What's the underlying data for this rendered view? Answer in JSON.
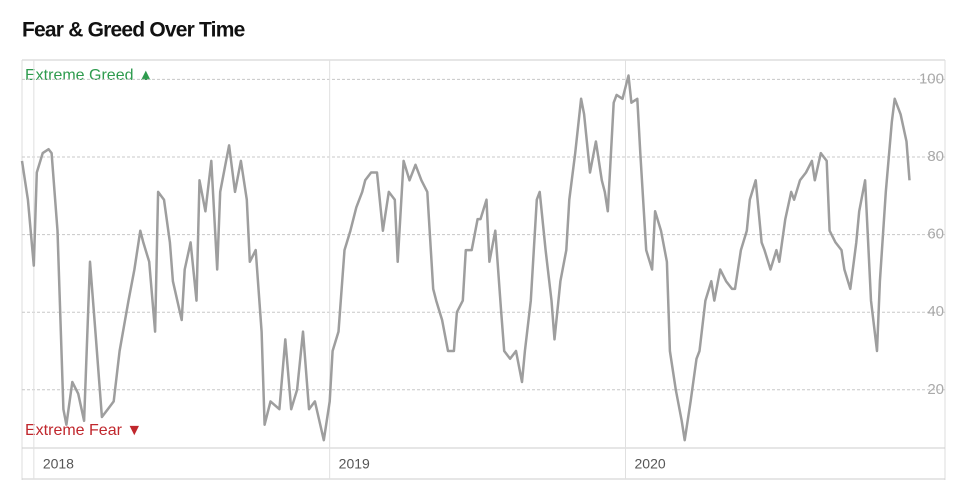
{
  "chart_data": {
    "type": "line",
    "title": "Fear & Greed Over Time",
    "annotations": {
      "top": "Extreme Greed ▲",
      "bottom": "Extreme Fear ▼"
    },
    "x": [
      2017.96,
      2017.98,
      2018.0,
      2018.01,
      2018.03,
      2018.05,
      2018.06,
      2018.08,
      2018.1,
      2018.11,
      2018.13,
      2018.15,
      2018.17,
      2018.19,
      2018.21,
      2018.23,
      2018.25,
      2018.27,
      2018.29,
      2018.32,
      2018.34,
      2018.36,
      2018.37,
      2018.39,
      2018.41,
      2018.42,
      2018.44,
      2018.46,
      2018.47,
      2018.5,
      2018.51,
      2018.53,
      2018.55,
      2018.56,
      2018.58,
      2018.6,
      2018.62,
      2018.63,
      2018.65,
      2018.66,
      2018.68,
      2018.7,
      2018.72,
      2018.73,
      2018.75,
      2018.77,
      2018.78,
      2018.8,
      2018.83,
      2018.85,
      2018.87,
      2018.89,
      2018.91,
      2018.93,
      2018.95,
      2018.98,
      2019.0,
      2019.01,
      2019.03,
      2019.05,
      2019.07,
      2019.09,
      2019.11,
      2019.12,
      2019.14,
      2019.16,
      2019.18,
      2019.2,
      2019.22,
      2019.23,
      2019.25,
      2019.27,
      2019.29,
      2019.31,
      2019.33,
      2019.35,
      2019.36,
      2019.38,
      2019.4,
      2019.42,
      2019.43,
      2019.45,
      2019.46,
      2019.48,
      2019.5,
      2019.51,
      2019.53,
      2019.54,
      2019.56,
      2019.58,
      2019.59,
      2019.61,
      2019.63,
      2019.65,
      2019.66,
      2019.68,
      2019.7,
      2019.71,
      2019.73,
      2019.75,
      2019.76,
      2019.78,
      2019.8,
      2019.81,
      2019.83,
      2019.85,
      2019.86,
      2019.88,
      2019.9,
      2019.92,
      2019.93,
      2019.94,
      2019.96,
      2019.97,
      2019.99,
      2020.01,
      2020.02,
      2020.04,
      2020.05,
      2020.07,
      2020.09,
      2020.1,
      2020.12,
      2020.14,
      2020.15,
      2020.17,
      2020.19,
      2020.2,
      2020.22,
      2020.24,
      2020.25,
      2020.27,
      2020.29,
      2020.3,
      2020.32,
      2020.34,
      2020.36,
      2020.37,
      2020.39,
      2020.41,
      2020.42,
      2020.44,
      2020.46,
      2020.47,
      2020.49,
      2020.51,
      2020.52,
      2020.54,
      2020.56,
      2020.57,
      2020.59,
      2020.61,
      2020.63,
      2020.64,
      2020.66,
      2020.68,
      2020.69,
      2020.71,
      2020.73,
      2020.74,
      2020.76,
      2020.78,
      2020.79,
      2020.81,
      2020.83,
      2020.85,
      2020.86,
      2020.88,
      2020.9,
      2020.91,
      2020.93,
      2020.95,
      2020.96
    ],
    "series": [
      {
        "color": "#9e9e9e",
        "values": [
          79,
          69,
          52,
          76,
          81,
          82,
          81,
          61,
          15,
          11,
          22,
          19,
          12,
          53,
          33,
          13,
          15,
          17,
          30,
          43,
          51,
          61,
          58,
          53,
          35,
          71,
          69,
          58,
          48,
          38,
          51,
          58,
          43,
          74,
          66,
          79,
          51,
          71,
          79,
          83,
          71,
          79,
          69,
          53,
          56,
          35,
          11,
          17,
          15,
          33,
          15,
          20,
          35,
          15,
          17,
          7,
          17,
          30,
          35,
          56,
          61,
          67,
          71,
          74,
          76,
          76,
          61,
          71,
          69,
          53,
          79,
          74,
          78,
          74,
          71,
          46,
          43,
          38,
          30,
          30,
          40,
          43,
          56,
          56,
          64,
          64,
          69,
          53,
          61,
          40,
          30,
          28,
          30,
          22,
          30,
          43,
          69,
          71,
          56,
          43,
          33,
          48,
          56,
          69,
          81,
          95,
          91,
          76,
          84,
          74,
          71,
          66,
          94,
          96,
          95,
          101,
          94,
          95,
          81,
          56,
          51,
          66,
          61,
          53,
          30,
          20,
          12,
          7,
          17,
          28,
          30,
          43,
          48,
          43,
          51,
          48,
          46,
          46,
          56,
          61,
          69,
          74,
          58,
          56,
          51,
          56,
          53,
          64,
          71,
          69,
          74,
          76,
          79,
          74,
          81,
          79,
          61,
          58,
          56,
          51,
          46,
          58,
          66,
          74,
          43,
          30,
          48,
          71,
          89,
          95,
          91,
          84,
          74
        ]
      }
    ],
    "xlim": [
      2017.96,
      2021.08
    ],
    "xticks": [
      2018,
      2019,
      2020
    ],
    "ylim": [
      5,
      105
    ],
    "yticks": [
      20,
      40,
      60,
      80,
      100
    ],
    "grid": true
  }
}
